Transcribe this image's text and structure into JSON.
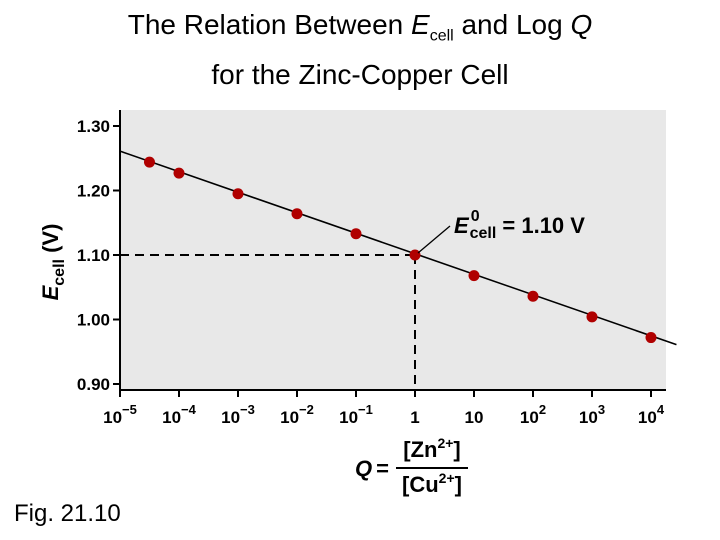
{
  "title": {
    "line1_prefix": "The Relation Between ",
    "line1_symbol": "E",
    "line1_subscript": "cell",
    "line1_middle": " and Log ",
    "line1_q": "Q",
    "line2": "for the Zinc-Copper Cell"
  },
  "figure_label": "Fig. 21.10",
  "colors": {
    "plot_background": "#e8e8e8",
    "marker": "#b00000",
    "line": "#000000"
  },
  "chart_data": {
    "type": "scatter",
    "title": "The Relation Between Ecell and Log Q for the Zinc-Copper Cell",
    "x_scale": "log",
    "xlim": [
      1e-05,
      10000.0
    ],
    "ylim": [
      0.9,
      1.3
    ],
    "grid": false,
    "ylabel": {
      "symbol": "E",
      "subscript": "cell",
      "unit": " (V)"
    },
    "xlabel": {
      "lhs": "Q",
      "equals": "=",
      "numerator": "[Zn",
      "numerator_charge": "2+",
      "numerator_close": "]",
      "denominator": "[Cu",
      "denominator_charge": "2+",
      "denominator_close": "]"
    },
    "y_ticks": [
      {
        "value": 1.3,
        "label": "1.30"
      },
      {
        "value": 1.2,
        "label": "1.20"
      },
      {
        "value": 1.1,
        "label": "1.10"
      },
      {
        "value": 1.0,
        "label": "1.00"
      },
      {
        "value": 0.9,
        "label": "0.90"
      }
    ],
    "x_ticks": [
      {
        "value": 1e-05,
        "base": "10",
        "exp": "−5"
      },
      {
        "value": 0.0001,
        "base": "10",
        "exp": "−4"
      },
      {
        "value": 0.001,
        "base": "10",
        "exp": "−3"
      },
      {
        "value": 0.01,
        "base": "10",
        "exp": "−2"
      },
      {
        "value": 0.1,
        "base": "10",
        "exp": "−1"
      },
      {
        "value": 1,
        "base": "1",
        "exp": ""
      },
      {
        "value": 10,
        "base": "10",
        "exp": ""
      },
      {
        "value": 100,
        "base": "10",
        "exp": "2"
      },
      {
        "value": 1000,
        "base": "10",
        "exp": "3"
      },
      {
        "value": 10000,
        "base": "10",
        "exp": "4"
      }
    ],
    "series": [
      {
        "points": [
          {
            "x": 3.16e-05,
            "y": 1.244
          },
          {
            "x": 0.0001,
            "y": 1.227
          },
          {
            "x": 0.001,
            "y": 1.195
          },
          {
            "x": 0.01,
            "y": 1.164
          },
          {
            "x": 0.1,
            "y": 1.133
          },
          {
            "x": 1,
            "y": 1.1
          },
          {
            "x": 10,
            "y": 1.068
          },
          {
            "x": 100,
            "y": 1.036
          },
          {
            "x": 1000,
            "y": 1.004
          },
          {
            "x": 10000,
            "y": 0.972
          }
        ]
      }
    ],
    "fit_line": {
      "x": [
        1e-05,
        27000
      ],
      "y": [
        1.261,
        0.961
      ]
    },
    "reference": {
      "x": 1,
      "y": 1.1
    },
    "annotation": {
      "symbol": "E",
      "superscript": "0",
      "subscript": "cell",
      "text": " = 1.10 V",
      "x": 1,
      "y": 1.1
    }
  }
}
